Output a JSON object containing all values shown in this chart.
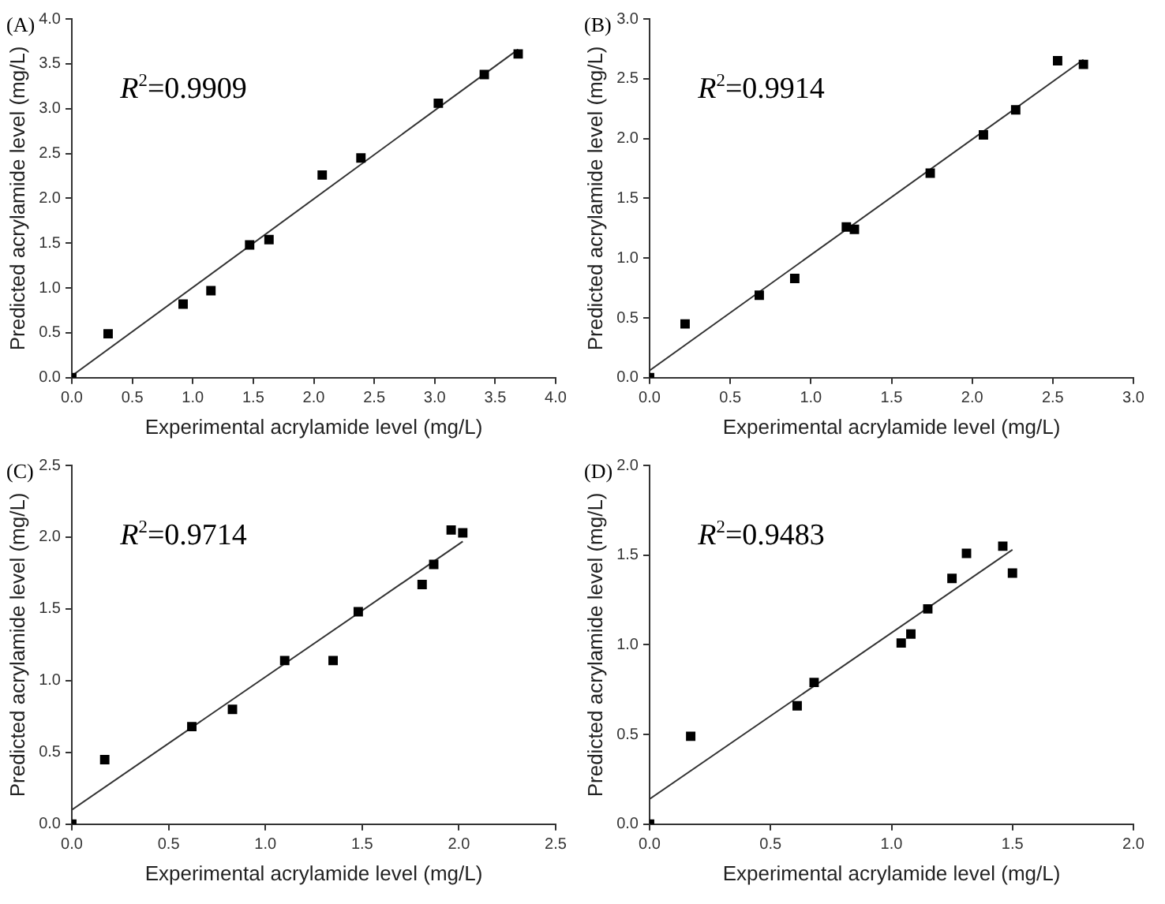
{
  "chart_data": [
    {
      "type": "scatter",
      "title": "(A)",
      "xlabel": "Experimental acrylamide level (mg/L)",
      "ylabel": "Predicted acrylamide level (mg/L)",
      "annotations": [
        "R$^{2}$=0.9909"
      ],
      "grid": false,
      "legend": false,
      "xlim": [
        0,
        4
      ],
      "ylim": [
        0,
        4
      ],
      "xticks": [
        {
          "value": 0,
          "label": "0.0"
        },
        0.5,
        {
          "value": 1,
          "label": "1.0"
        },
        1.5,
        {
          "value": 2,
          "label": "2.0"
        },
        2.5,
        {
          "value": 3,
          "label": "3.0"
        },
        3.5,
        {
          "value": 4,
          "label": "4.0"
        }
      ],
      "yticks": [
        {
          "value": 0,
          "label": "0.0"
        },
        0.5,
        {
          "value": 1,
          "label": "1.0"
        },
        1.5,
        {
          "value": 2,
          "label": "2.0"
        },
        2.5,
        {
          "value": 3,
          "label": "3.0"
        },
        3.5,
        {
          "value": 4,
          "label": "4.0"
        }
      ],
      "series": [
        {
          "marker": "square",
          "color": "#000000",
          "x": [
            0,
            0.3,
            0.92,
            1.15,
            1.47,
            1.63,
            2.07,
            2.39,
            3.03,
            3.41,
            3.69
          ],
          "values": [
            0,
            0.49,
            0.82,
            0.97,
            1.48,
            1.54,
            2.26,
            2.45,
            3.06,
            3.38,
            3.61
          ]
        },
        {
          "type": "line",
          "marker": "none",
          "color": "#333333",
          "x": [
            0,
            3.69
          ],
          "values": [
            0.02,
            3.66
          ]
        }
      ]
    },
    {
      "type": "scatter",
      "title": "(B)",
      "xlabel": "Experimental acrylamide level (mg/L)",
      "ylabel": "Predicted acrylamide level (mg/L)",
      "annotations": [
        "R$^{2}$=0.9914"
      ],
      "grid": false,
      "legend": false,
      "xlim": [
        0,
        3
      ],
      "ylim": [
        0,
        3
      ],
      "xticks": [
        {
          "value": 0,
          "label": "0.0"
        },
        0.5,
        {
          "value": 1,
          "label": "1.0"
        },
        1.5,
        {
          "value": 2,
          "label": "2.0"
        },
        2.5,
        {
          "value": 3,
          "label": "3.0"
        }
      ],
      "yticks": [
        {
          "value": 0,
          "label": "0.0"
        },
        0.5,
        {
          "value": 1,
          "label": "1.0"
        },
        1.5,
        {
          "value": 2,
          "label": "2.0"
        },
        2.5,
        {
          "value": 3,
          "label": "3.0"
        }
      ],
      "series": [
        {
          "marker": "square",
          "color": "#000000",
          "x": [
            0,
            0.22,
            0.68,
            0.9,
            1.22,
            1.27,
            1.74,
            2.07,
            2.27,
            2.53,
            2.69
          ],
          "values": [
            0,
            0.45,
            0.69,
            0.83,
            1.26,
            1.24,
            1.71,
            2.03,
            2.24,
            2.65,
            2.62
          ]
        },
        {
          "type": "line",
          "marker": "none",
          "color": "#333333",
          "x": [
            0,
            2.69
          ],
          "values": [
            0.06,
            2.66
          ]
        }
      ]
    },
    {
      "type": "scatter",
      "title": "(C)",
      "xlabel": "Experimental acrylamide level (mg/L)",
      "ylabel": "Predicted acrylamide level (mg/L)",
      "annotations": [
        "R$^{2}$=0.9714"
      ],
      "grid": false,
      "legend": false,
      "xlim": [
        0,
        2.5
      ],
      "ylim": [
        0,
        2.5
      ],
      "xticks": [
        {
          "value": 0,
          "label": "0.0"
        },
        0.5,
        {
          "value": 1,
          "label": "1.0"
        },
        1.5,
        {
          "value": 2,
          "label": "2.0"
        },
        2.5
      ],
      "yticks": [
        {
          "value": 0,
          "label": "0.0"
        },
        0.5,
        {
          "value": 1,
          "label": "1.0"
        },
        1.5,
        {
          "value": 2,
          "label": "2.0"
        },
        2.5
      ],
      "series": [
        {
          "marker": "square",
          "color": "#000000",
          "x": [
            0,
            0.17,
            0.62,
            0.83,
            1.1,
            1.35,
            1.48,
            1.81,
            1.87,
            1.96,
            2.02
          ],
          "values": [
            0,
            0.45,
            0.68,
            0.8,
            1.14,
            1.14,
            1.48,
            1.67,
            1.81,
            2.05,
            2.03
          ]
        },
        {
          "type": "line",
          "marker": "none",
          "color": "#333333",
          "x": [
            0,
            2.02
          ],
          "values": [
            0.1,
            1.97
          ]
        }
      ]
    },
    {
      "type": "scatter",
      "title": "(D)",
      "xlabel": "Experimental acrylamide level (mg/L)",
      "ylabel": "Predicted acrylamide level (mg/L)",
      "annotations": [
        "R$^{2}$=0.9483"
      ],
      "grid": false,
      "legend": false,
      "xlim": [
        0,
        2
      ],
      "ylim": [
        0,
        2
      ],
      "xticks": [
        {
          "value": 0,
          "label": "0.0"
        },
        0.5,
        {
          "value": 1,
          "label": "1.0"
        },
        1.5,
        {
          "value": 2,
          "label": "2.0"
        }
      ],
      "yticks": [
        {
          "value": 0,
          "label": "0.0"
        },
        0.5,
        {
          "value": 1,
          "label": "1.0"
        },
        1.5,
        {
          "value": 2,
          "label": "2.0"
        }
      ],
      "series": [
        {
          "marker": "square",
          "color": "#000000",
          "x": [
            0,
            0.17,
            0.61,
            0.68,
            1.04,
            1.08,
            1.15,
            1.25,
            1.31,
            1.46,
            1.5
          ],
          "values": [
            0,
            0.49,
            0.66,
            0.79,
            1.01,
            1.06,
            1.2,
            1.37,
            1.51,
            1.55,
            1.4
          ]
        },
        {
          "type": "line",
          "marker": "none",
          "color": "#333333",
          "x": [
            0,
            1.5
          ],
          "values": [
            0.14,
            1.53
          ]
        }
      ]
    }
  ]
}
